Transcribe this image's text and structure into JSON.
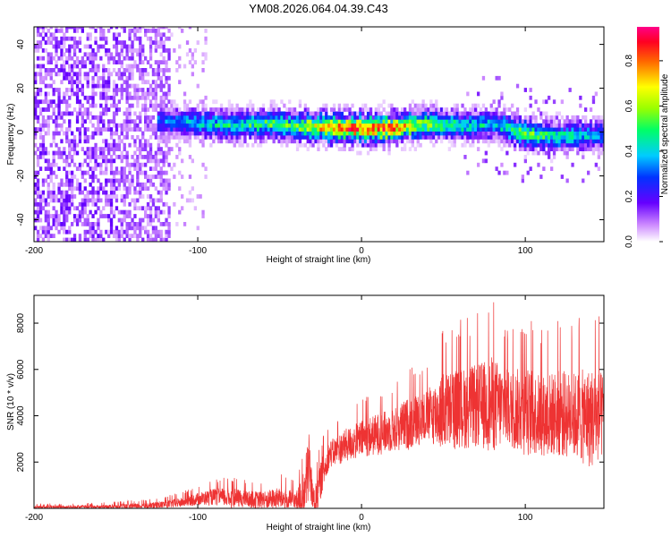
{
  "title": "YM08.2026.064.04.39.C43",
  "chart_data": [
    {
      "type": "heatmap",
      "xlabel": "Height of straight line (km)",
      "ylabel": "Frequency (Hz)",
      "xlim": [
        -200,
        148
      ],
      "ylim": [
        -50,
        48
      ],
      "x_ticks": [
        -200,
        -100,
        0,
        100
      ],
      "y_ticks": [
        -40,
        -20,
        0,
        20,
        40
      ],
      "colorbar": {
        "label": "Normalized spectral amplitude",
        "range": [
          0,
          0.95
        ],
        "ticks": [
          0.0,
          0.2,
          0.4,
          0.6,
          0.8
        ],
        "tick_labels": [
          "0.0",
          "0.2",
          "0.4",
          "0.6",
          "0.8"
        ]
      },
      "dominant_band": {
        "x": [
          -120,
          -100,
          -80,
          -60,
          -40,
          -20,
          0,
          20,
          40,
          60,
          80,
          100,
          120,
          145
        ],
        "center_freq": [
          4,
          3,
          2,
          3,
          2,
          1,
          1,
          1,
          3,
          2,
          3,
          -2,
          -3,
          -2
        ],
        "peak_amplitude": [
          0.35,
          0.45,
          0.5,
          0.55,
          0.6,
          0.85,
          0.9,
          0.85,
          0.6,
          0.5,
          0.45,
          0.6,
          0.5,
          0.4
        ]
      }
    },
    {
      "type": "line",
      "xlabel": "Height of straight line (km)",
      "ylabel": "SNR (10 * v/v)",
      "xlim": [
        -200,
        148
      ],
      "ylim": [
        0,
        9200
      ],
      "x_ticks": [
        -200,
        -100,
        0,
        100
      ],
      "y_ticks": [
        2000,
        4000,
        6000,
        8000
      ],
      "series": [
        {
          "name": "SNR",
          "color": "#ee3333",
          "x": [
            -200,
            -160,
            -130,
            -110,
            -100,
            -90,
            -80,
            -70,
            -60,
            -50,
            -40,
            -35,
            -32,
            -30,
            -28,
            -25,
            -20,
            -10,
            0,
            10,
            20,
            30,
            40,
            50,
            60,
            70,
            80,
            90,
            100,
            110,
            120,
            130,
            140,
            148
          ],
          "mean": [
            50,
            60,
            100,
            250,
            400,
            500,
            450,
            400,
            350,
            450,
            300,
            500,
            2000,
            500,
            300,
            1200,
            2300,
            2700,
            3000,
            3200,
            3400,
            3700,
            4000,
            4200,
            4300,
            4400,
            4500,
            4300,
            4200,
            4000,
            4100,
            4000,
            3900,
            4000
          ],
          "max": [
            200,
            250,
            400,
            700,
            1000,
            1300,
            1400,
            1200,
            1200,
            1500,
            1200,
            3000,
            5700,
            2000,
            2000,
            3000,
            3600,
            4300,
            4800,
            5200,
            5500,
            6300,
            6500,
            8000,
            8200,
            8400,
            9100,
            8000,
            8500,
            7900,
            8300,
            8200,
            8800,
            8100
          ]
        }
      ]
    }
  ]
}
